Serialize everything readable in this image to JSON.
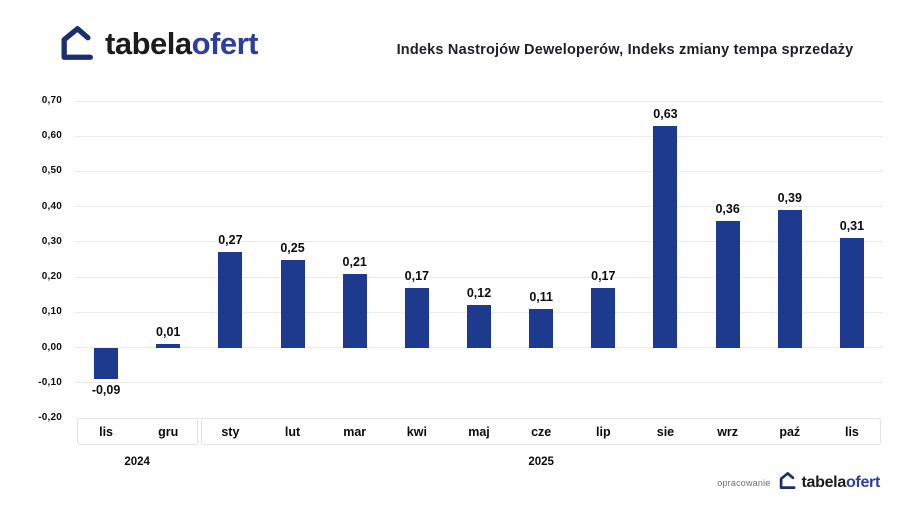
{
  "header": {
    "title": "Indeks Nastrojów Deweloperów, Indeks zmiany tempa sprzedaży",
    "logo": {
      "text_black": "tabela",
      "text_blue": "ofert"
    }
  },
  "footer": {
    "caption": "opracowanie",
    "logo": {
      "text_black": "tabela",
      "text_blue": "ofert"
    }
  },
  "colors": {
    "bar": "#1e3a8f",
    "logo_icon": "#1c2e6e",
    "logo_blue": "#2c3e9e",
    "grid": "#ebebeb",
    "text": "#0c0c0c",
    "caption_gray": "#6f6f6f"
  },
  "icons": [
    {
      "name": "house-logo-icon",
      "meaning": "tabelaofert house outline logo"
    }
  ],
  "chart_data": {
    "type": "bar",
    "title": "Indeks Nastrojów Deweloperów, Indeks zmiany tempa sprzedaży",
    "categories": [
      "lis",
      "gru",
      "sty",
      "lut",
      "mar",
      "kwi",
      "maj",
      "cze",
      "lip",
      "sie",
      "wrz",
      "paź",
      "lis"
    ],
    "values": [
      -0.09,
      0.01,
      0.27,
      0.25,
      0.21,
      0.17,
      0.12,
      0.11,
      0.17,
      0.63,
      0.36,
      0.39,
      0.31
    ],
    "value_labels": [
      "-0,09",
      "0,01",
      "0,27",
      "0,25",
      "0,21",
      "0,17",
      "0,12",
      "0,11",
      "0,17",
      "0,63",
      "0,36",
      "0,39",
      "0,31"
    ],
    "ytick_values": [
      0.7,
      0.6,
      0.5,
      0.4,
      0.3,
      0.2,
      0.1,
      0.0,
      -0.1,
      -0.2
    ],
    "ytick_labels": [
      "0,70",
      "0,60",
      "0,50",
      "0,40",
      "0,30",
      "0,20",
      "0,10",
      "0,00",
      "-0,10",
      "-0,20"
    ],
    "ylim": [
      -0.2,
      0.7
    ],
    "xlabel": "",
    "ylabel": "",
    "grid": true,
    "legend": false,
    "year_groups": [
      {
        "label": "2024",
        "start": 0,
        "count": 2
      },
      {
        "label": "2025",
        "start": 2,
        "count": 11
      }
    ]
  }
}
